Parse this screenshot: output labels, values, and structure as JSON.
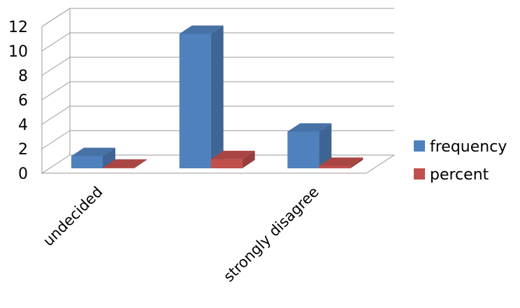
{
  "chart_data": {
    "type": "bar",
    "categories": [
      "undecided",
      "",
      "strongly disagree"
    ],
    "series": [
      {
        "name": "frequency",
        "values": [
          1,
          11,
          3
        ],
        "color": "#4F81BD"
      },
      {
        "name": "percent",
        "values": [
          0.05,
          0.75,
          0.2
        ],
        "color": "#C0504D"
      }
    ],
    "ylim": [
      0,
      12
    ],
    "yticks": [
      0,
      2,
      4,
      6,
      8,
      10,
      12
    ],
    "grid": true,
    "legend_position": "right",
    "style": "3d-clustered-column"
  }
}
